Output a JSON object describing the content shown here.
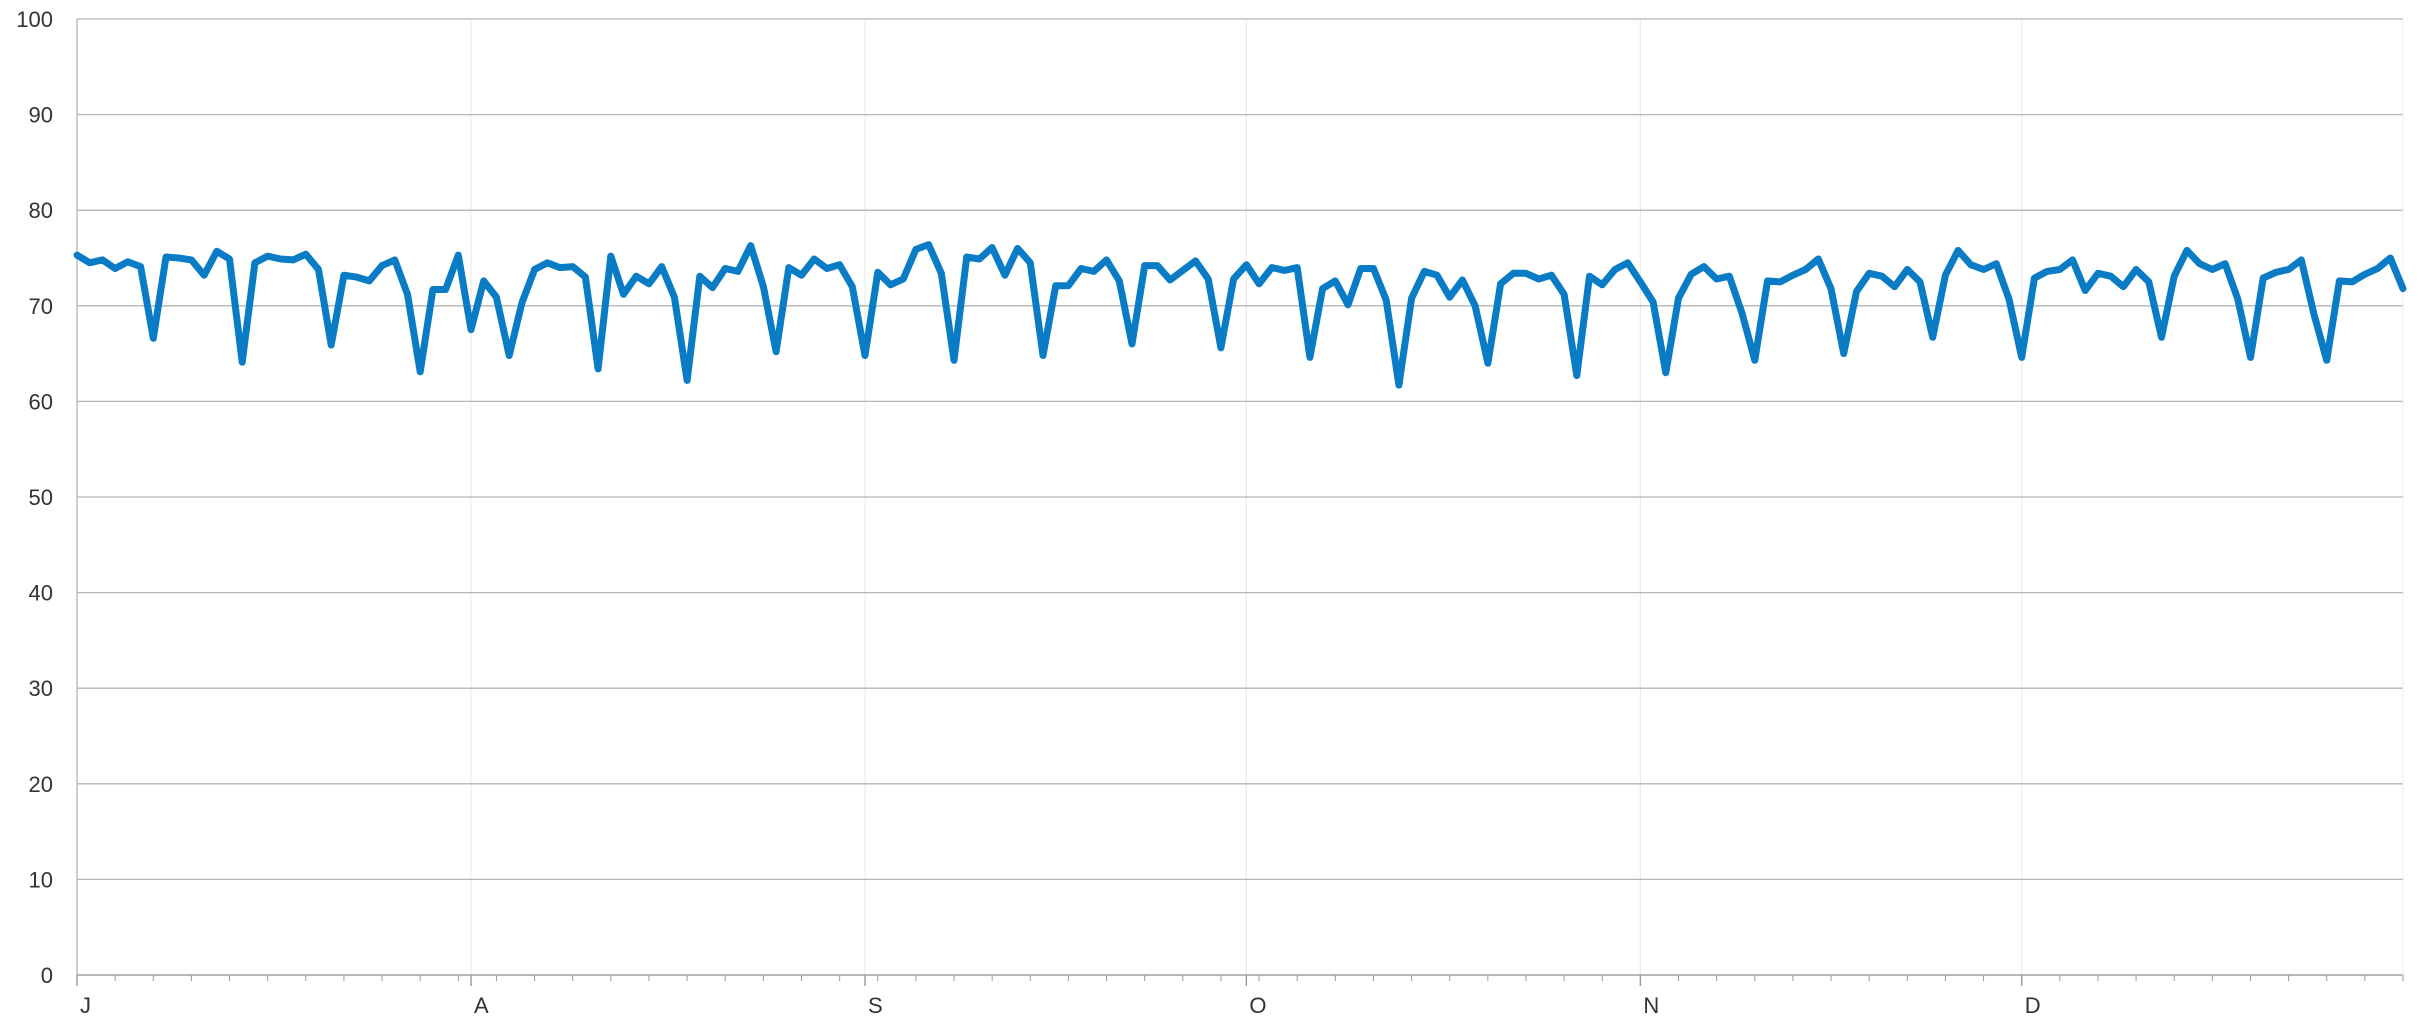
{
  "chart_data": {
    "type": "line",
    "title": "",
    "xlabel": "",
    "ylabel": "",
    "ylim": [
      0,
      100
    ],
    "yticks": [
      0,
      10,
      20,
      30,
      40,
      50,
      60,
      70,
      80,
      90,
      100
    ],
    "x_tick_labels": [
      {
        "label": "J",
        "index": 0
      },
      {
        "label": "A",
        "index": 31
      },
      {
        "label": "S",
        "index": 62
      },
      {
        "label": "O",
        "index": 92
      },
      {
        "label": "N",
        "index": 123
      },
      {
        "label": "D",
        "index": 153
      }
    ],
    "x_count": 184,
    "grid": {
      "horizontal": true,
      "vertical": true
    },
    "colors": {
      "line": "#0a7cc6",
      "grid": "#b4b4b4",
      "grid_minor": "#ececec",
      "axis": "#999999"
    },
    "series": [
      {
        "values": [
          75.3,
          74.5,
          74.8,
          73.9,
          74.6,
          74.1,
          66.6,
          75.1,
          75.0,
          74.8,
          73.2,
          75.7,
          74.9,
          64.1,
          74.5,
          75.2,
          74.9,
          74.8,
          75.4,
          73.8,
          65.9,
          73.2,
          73.0,
          72.6,
          74.2,
          74.8,
          71.2,
          63.1,
          71.7,
          71.7,
          75.3,
          67.5,
          72.6,
          70.9,
          64.8,
          70.3,
          73.8,
          74.5,
          74.0,
          74.1,
          73.0,
          63.4,
          75.2,
          71.2,
          73.1,
          72.3,
          74.1,
          70.9,
          62.2,
          73.1,
          71.9,
          73.9,
          73.6,
          76.3,
          72.0,
          65.2,
          74.0,
          73.2,
          74.9,
          73.9,
          74.3,
          72.0,
          64.8,
          73.5,
          72.2,
          72.8,
          75.9,
          76.4,
          73.4,
          64.3,
          75.1,
          74.9,
          76.1,
          73.2,
          76.0,
          74.5,
          64.8,
          72.1,
          72.1,
          73.9,
          73.6,
          74.8,
          72.6,
          66.0,
          74.2,
          74.2,
          72.7,
          73.7,
          74.7,
          72.8,
          65.6,
          72.8,
          74.3,
          72.3,
          74.0,
          73.7,
          74.0,
          64.6,
          71.8,
          72.6,
          70.1,
          73.9,
          73.9,
          70.6,
          61.7,
          70.8,
          73.6,
          73.2,
          70.9,
          72.7,
          70.0,
          64.0,
          72.3,
          73.4,
          73.4,
          72.8,
          73.2,
          71.2,
          62.7,
          73.1,
          72.2,
          73.8,
          74.5,
          72.5,
          70.4,
          63.0,
          70.8,
          73.3,
          74.1,
          72.8,
          73.1,
          69.2,
          64.3,
          72.6,
          72.5,
          73.2,
          73.8,
          74.9,
          71.8,
          65.0,
          71.5,
          73.4,
          73.1,
          72.0,
          73.8,
          72.5,
          66.7,
          73.2,
          75.8,
          74.3,
          73.8,
          74.4,
          70.7,
          64.6,
          72.9,
          73.6,
          73.8,
          74.8,
          71.6,
          73.4,
          73.1,
          72.0,
          73.8,
          72.5,
          66.7,
          73.1,
          75.8,
          74.4,
          73.8,
          74.4,
          70.7,
          64.6,
          72.9,
          73.5,
          73.8,
          74.8,
          69.1,
          64.3,
          72.6,
          72.5,
          73.3,
          73.9,
          75.0,
          71.8
        ]
      }
    ]
  }
}
